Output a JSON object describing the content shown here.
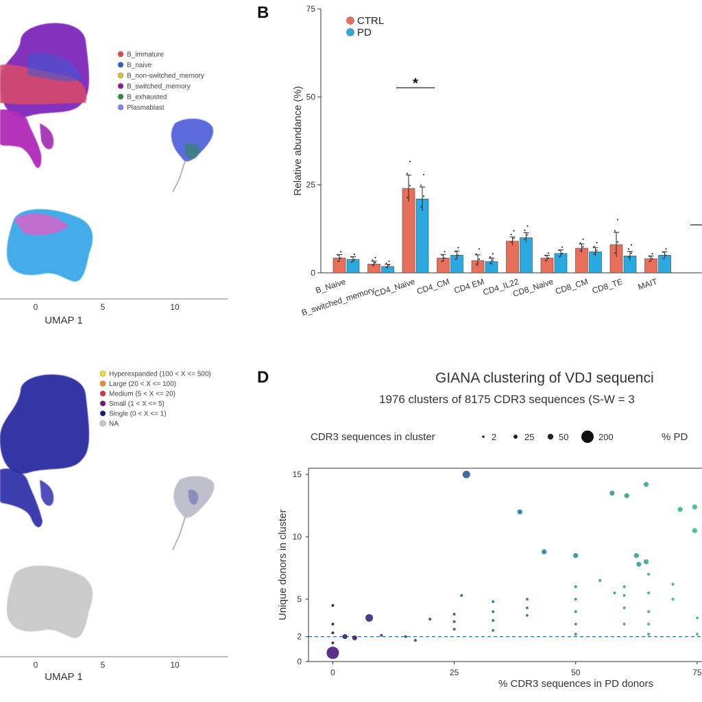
{
  "panels": {
    "A": {
      "xlabel": "UMAP 1",
      "xticks": [
        "0",
        "5",
        "10"
      ],
      "legend": [
        {
          "label": "B_immature",
          "color": "#e04848"
        },
        {
          "label": "B_naive",
          "color": "#2f5fcf"
        },
        {
          "label": "B_non-switched_memory",
          "color": "#d8c030"
        },
        {
          "label": "B_switched_memory",
          "color": "#8a1c9a"
        },
        {
          "label": "B_exhausted",
          "color": "#2e8a4a"
        },
        {
          "label": "Plasmablast",
          "color": "#8080f0"
        }
      ]
    },
    "B": {
      "letter": "B",
      "legend": [
        {
          "label": "CTRL",
          "color": "#e8705a"
        },
        {
          "label": "PD",
          "color": "#2aa8e0"
        }
      ],
      "significance_marker": "*"
    },
    "C": {
      "xlabel": "UMAP 1",
      "xticks": [
        "0",
        "5",
        "10"
      ],
      "legend": [
        {
          "label": "Hyperexpanded (100 < X <= 500)",
          "color": "#f0e020"
        },
        {
          "label": "Large (20 < X <= 100)",
          "color": "#f08a30"
        },
        {
          "label": "Medium (5 < X <= 20)",
          "color": "#d83050"
        },
        {
          "label": "Small (1 < X <= 5)",
          "color": "#701a7a"
        },
        {
          "label": "Single (0 < X <= 1)",
          "color": "#1a1a80"
        },
        {
          "label": "NA",
          "color": "#c8c8c8"
        }
      ]
    },
    "D": {
      "letter": "D",
      "title": "GIANA clustering of VDJ sequenci",
      "subtitle": "1976 clusters of 8175 CDR3 sequences (S-W = 3",
      "size_legend_label": "CDR3 sequences in cluster",
      "size_legend_values": [
        "2",
        "25",
        "50",
        "200"
      ],
      "color_legend_label": "% PD"
    }
  },
  "chart_data": [
    {
      "type": "bar",
      "panel": "B",
      "ylabel": "Relative abundance (%)",
      "ylim": [
        0,
        75
      ],
      "yticks": [
        0,
        25,
        50,
        75
      ],
      "categories": [
        "B_Naive",
        "B_switched_memory",
        "CD4_Naive",
        "CD4_CM",
        "CD4 EM",
        "CD4_IL22",
        "CD8_Naive",
        "CD8_CM",
        "CD8_TE",
        "MAIT"
      ],
      "series": [
        {
          "name": "CTRL",
          "values": [
            4.2,
            2.5,
            24.0,
            4.2,
            3.5,
            9.0,
            4.2,
            7.0,
            8.0,
            4.0
          ],
          "errors": [
            1.0,
            0.8,
            3.8,
            1.0,
            1.6,
            1.2,
            0.8,
            1.2,
            3.5,
            0.8
          ]
        },
        {
          "name": "PD",
          "values": [
            3.8,
            1.8,
            21.0,
            5.0,
            3.2,
            10.0,
            5.5,
            6.0,
            4.8,
            5.0
          ],
          "errors": [
            0.8,
            0.6,
            3.4,
            1.2,
            1.0,
            1.4,
            1.0,
            1.2,
            1.3,
            1.0
          ]
        }
      ],
      "grid": false,
      "legend_position": "top-left"
    },
    {
      "type": "scatter",
      "panel": "D",
      "xlabel": "% CDR3 sequences in PD donors",
      "ylabel": "Unique donors in cluster",
      "xlim": [
        -5,
        76
      ],
      "ylim": [
        0,
        15.5
      ],
      "xticks": [
        0,
        25,
        50,
        75
      ],
      "yticks": [
        0,
        2,
        5,
        10,
        15
      ],
      "reference_line_y": 2,
      "points": [
        {
          "x": 0,
          "y": 0.7,
          "s": 200
        },
        {
          "x": 0,
          "y": 1.5,
          "s": 2
        },
        {
          "x": 0,
          "y": 2.3,
          "s": 2
        },
        {
          "x": 0,
          "y": 3.0,
          "s": 2
        },
        {
          "x": 0,
          "y": 4.5,
          "s": 2
        },
        {
          "x": 2.5,
          "y": 2.0,
          "s": 25
        },
        {
          "x": 4.5,
          "y": 1.9,
          "s": 25
        },
        {
          "x": 7.5,
          "y": 3.5,
          "s": 50
        },
        {
          "x": 10,
          "y": 2.1,
          "s": 2
        },
        {
          "x": 15,
          "y": 2.0,
          "s": 2
        },
        {
          "x": 17,
          "y": 1.7,
          "s": 2
        },
        {
          "x": 20,
          "y": 3.4,
          "s": 2
        },
        {
          "x": 25,
          "y": 2.6,
          "s": 2
        },
        {
          "x": 25,
          "y": 3.2,
          "s": 2
        },
        {
          "x": 25,
          "y": 3.8,
          "s": 2
        },
        {
          "x": 26.5,
          "y": 5.3,
          "s": 2
        },
        {
          "x": 27.5,
          "y": 15.0,
          "s": 50
        },
        {
          "x": 33,
          "y": 2.5,
          "s": 2
        },
        {
          "x": 33,
          "y": 3.3,
          "s": 2
        },
        {
          "x": 33,
          "y": 4.0,
          "s": 2
        },
        {
          "x": 33,
          "y": 4.8,
          "s": 2
        },
        {
          "x": 38.5,
          "y": 12.0,
          "s": 25
        },
        {
          "x": 40,
          "y": 3.7,
          "s": 2
        },
        {
          "x": 40,
          "y": 4.3,
          "s": 2
        },
        {
          "x": 40,
          "y": 5.0,
          "s": 2
        },
        {
          "x": 43.5,
          "y": 8.8,
          "s": 25
        },
        {
          "x": 50,
          "y": 2.2,
          "s": 2
        },
        {
          "x": 50,
          "y": 3.0,
          "s": 2
        },
        {
          "x": 50,
          "y": 4.0,
          "s": 2
        },
        {
          "x": 50,
          "y": 5.0,
          "s": 2
        },
        {
          "x": 50,
          "y": 6.0,
          "s": 2
        },
        {
          "x": 50,
          "y": 8.5,
          "s": 25
        },
        {
          "x": 55,
          "y": 6.5,
          "s": 2
        },
        {
          "x": 57.5,
          "y": 13.5,
          "s": 25
        },
        {
          "x": 58,
          "y": 5.5,
          "s": 2
        },
        {
          "x": 60,
          "y": 3.0,
          "s": 2
        },
        {
          "x": 60,
          "y": 4.3,
          "s": 2
        },
        {
          "x": 60,
          "y": 5.3,
          "s": 2
        },
        {
          "x": 60,
          "y": 6.0,
          "s": 2
        },
        {
          "x": 60.5,
          "y": 13.3,
          "s": 25
        },
        {
          "x": 62.5,
          "y": 8.5,
          "s": 25
        },
        {
          "x": 63,
          "y": 7.8,
          "s": 25
        },
        {
          "x": 64.5,
          "y": 8.0,
          "s": 25
        },
        {
          "x": 64.5,
          "y": 14.2,
          "s": 25
        },
        {
          "x": 65,
          "y": 2.2,
          "s": 2
        },
        {
          "x": 65,
          "y": 3.0,
          "s": 2
        },
        {
          "x": 65,
          "y": 4.0,
          "s": 2
        },
        {
          "x": 65,
          "y": 5.5,
          "s": 2
        },
        {
          "x": 65,
          "y": 7.0,
          "s": 2
        },
        {
          "x": 70,
          "y": 5.0,
          "s": 2
        },
        {
          "x": 70,
          "y": 6.2,
          "s": 2
        },
        {
          "x": 71.5,
          "y": 12.2,
          "s": 25
        },
        {
          "x": 74.5,
          "y": 12.4,
          "s": 25
        },
        {
          "x": 74.5,
          "y": 10.5,
          "s": 25
        },
        {
          "x": 75,
          "y": 2.2,
          "s": 2
        },
        {
          "x": 75,
          "y": 3.5,
          "s": 2
        }
      ]
    }
  ]
}
